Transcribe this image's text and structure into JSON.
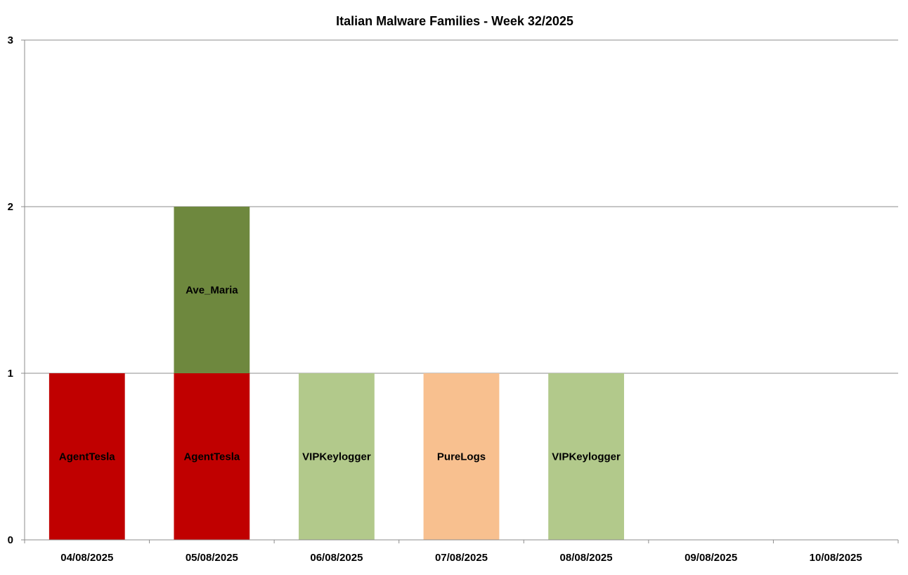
{
  "chart_data": {
    "type": "bar",
    "stacked": true,
    "title": "Italian Malware Families - Week 32/2025",
    "xlabel": "",
    "ylabel": "",
    "ylim": [
      0,
      3
    ],
    "yticks": [
      0,
      1,
      2,
      3
    ],
    "grid": true,
    "legend": "none",
    "categories": [
      "04/08/2025",
      "05/08/2025",
      "06/08/2025",
      "07/08/2025",
      "08/08/2025",
      "09/08/2025",
      "10/08/2025"
    ],
    "series": [
      {
        "name": "AgentTesla",
        "color": "#c00000",
        "values": [
          1,
          1,
          0,
          0,
          0,
          0,
          0
        ]
      },
      {
        "name": "Ave_Maria",
        "color": "#6e883e",
        "values": [
          0,
          1,
          0,
          0,
          0,
          0,
          0
        ]
      },
      {
        "name": "VIPKeylogger",
        "color": "#b2c98b",
        "values": [
          0,
          0,
          1,
          0,
          1,
          0,
          0
        ]
      },
      {
        "name": "PureLogs",
        "color": "#f8c08f",
        "values": [
          0,
          0,
          0,
          1,
          0,
          0,
          0
        ]
      }
    ]
  }
}
